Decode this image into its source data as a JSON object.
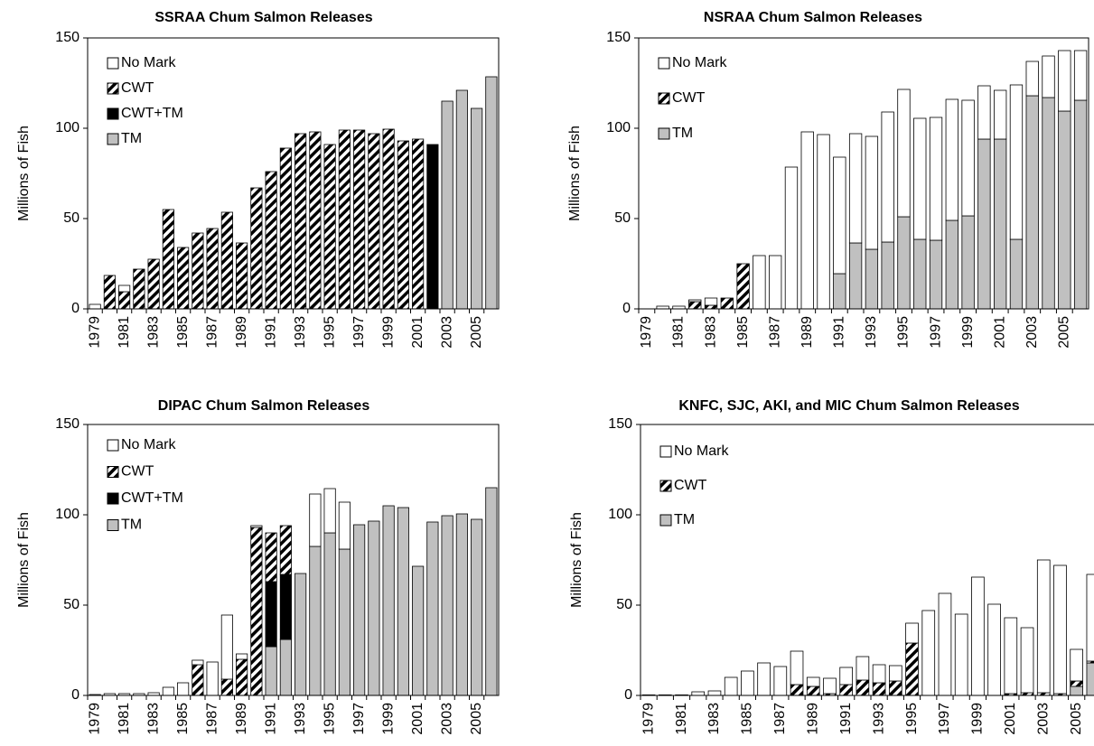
{
  "chart_data": [
    {
      "type": "stacked-bar",
      "title": "SSRAA Chum Salmon Releases",
      "y_label": "Millions of Fish",
      "categories": [
        "1979",
        null,
        "1981",
        null,
        "1983",
        null,
        "1985",
        null,
        "1987",
        null,
        "1989",
        null,
        "1991",
        null,
        "1993",
        null,
        "1995",
        null,
        "1997",
        null,
        "1999",
        null,
        "2001",
        null,
        "2003",
        null,
        "2005",
        null
      ],
      "ylim": [
        0,
        150
      ],
      "yticks": [
        0,
        50,
        100,
        150
      ],
      "series": [
        {
          "name": "No Mark",
          "color": "#ffffff",
          "values": [
            2.5,
            0,
            3.5,
            0,
            0,
            0,
            0,
            0,
            0,
            0,
            0,
            0,
            0,
            0,
            0,
            0,
            0,
            0,
            0,
            0,
            0,
            0,
            0,
            0,
            0,
            0,
            0,
            0
          ]
        },
        {
          "name": "CWT",
          "color": "#000000",
          "hatch": true,
          "values": [
            0,
            18.5,
            9.5,
            22,
            27.5,
            55,
            34,
            42,
            44.5,
            53.5,
            36.5,
            67,
            76,
            89,
            97,
            98,
            91,
            99,
            99,
            97,
            99.5,
            93,
            94,
            0,
            0,
            0,
            0,
            0
          ]
        },
        {
          "name": "CWT+TM",
          "color": "#000000",
          "values": [
            0,
            0,
            0,
            0,
            0,
            0,
            0,
            0,
            0,
            0,
            0,
            0,
            0,
            0,
            0,
            0,
            0,
            0,
            0,
            0,
            0,
            0,
            0,
            91,
            0,
            0,
            0,
            0
          ]
        },
        {
          "name": "TM",
          "color": "#c0c0c0",
          "values": [
            0,
            0,
            0,
            0,
            0,
            0,
            0,
            0,
            0,
            0,
            0,
            0,
            0,
            0,
            0,
            0,
            0,
            0,
            0,
            0,
            0,
            0,
            0,
            0,
            115,
            121,
            111,
            128.5
          ]
        }
      ]
    },
    {
      "type": "stacked-bar",
      "title": "NSRAA Chum Salmon Releases",
      "y_label": "Millions of Fish",
      "categories": [
        "1979",
        null,
        "1981",
        null,
        "1983",
        null,
        "1985",
        null,
        "1987",
        null,
        "1989",
        null,
        "1991",
        null,
        "1993",
        null,
        "1995",
        null,
        "1997",
        null,
        "1999",
        null,
        "2001",
        null,
        "2003",
        null,
        "2005",
        null
      ],
      "ylim": [
        0,
        150
      ],
      "yticks": [
        0,
        50,
        100,
        150
      ],
      "series": [
        {
          "name": "No Mark",
          "color": "#ffffff",
          "values": [
            0,
            1.5,
            1.5,
            1,
            4,
            0,
            0,
            29.5,
            29.5,
            78.5,
            98,
            96.5,
            64.5,
            60.5,
            62.5,
            72,
            70.5,
            67,
            68,
            67,
            64,
            29.5,
            27,
            85.5,
            19,
            23,
            33.5,
            27.5
          ]
        },
        {
          "name": "CWT",
          "color": "#000000",
          "hatch": true,
          "values": [
            0,
            0,
            0,
            4,
            2,
            6,
            25,
            0,
            0,
            0,
            0,
            0,
            0,
            0,
            0,
            0,
            0,
            0,
            0,
            0,
            0,
            0,
            0,
            0,
            0,
            0,
            0,
            0
          ]
        },
        {
          "name": "TM",
          "color": "#c0c0c0",
          "values": [
            0,
            0,
            0,
            0,
            0,
            0,
            0,
            0,
            0,
            0,
            0,
            0,
            19.5,
            36.5,
            33,
            37,
            51,
            38.5,
            38,
            49,
            51.5,
            94,
            94,
            38.5,
            118,
            117,
            109.5,
            115.5
          ]
        }
      ]
    },
    {
      "type": "stacked-bar",
      "title": "DIPAC Chum Salmon Releases",
      "y_label": "Millions of Fish",
      "categories": [
        "1979",
        null,
        "1981",
        null,
        "1983",
        null,
        "1985",
        null,
        "1987",
        null,
        "1989",
        null,
        "1991",
        null,
        "1993",
        null,
        "1995",
        null,
        "1997",
        null,
        "1999",
        null,
        "2001",
        null,
        "2003",
        null,
        "2005",
        null
      ],
      "ylim": [
        0,
        150
      ],
      "yticks": [
        0,
        50,
        100,
        150
      ],
      "series": [
        {
          "name": "No Mark",
          "color": "#ffffff",
          "values": [
            0.5,
            1,
            1,
            1,
            1.5,
            4.5,
            7,
            2.5,
            18.5,
            35.5,
            3,
            1,
            0,
            0,
            0,
            29,
            24.5,
            26,
            0,
            0,
            0,
            0,
            0,
            0,
            0,
            0,
            0,
            0
          ]
        },
        {
          "name": "CWT",
          "color": "#000000",
          "hatch": true,
          "values": [
            0,
            0,
            0,
            0,
            0,
            0,
            0,
            17,
            0,
            9,
            20,
            93,
            27,
            27,
            0,
            0,
            0,
            0,
            0,
            0,
            0,
            0,
            0,
            0,
            0,
            0,
            0,
            0
          ]
        },
        {
          "name": "CWT+TM",
          "color": "#000000",
          "values": [
            0,
            0,
            0,
            0,
            0,
            0,
            0,
            0,
            0,
            0,
            0,
            0,
            36,
            36,
            0,
            0,
            0,
            0,
            0,
            0,
            0,
            0,
            0,
            0,
            0,
            0,
            0,
            0
          ]
        },
        {
          "name": "TM",
          "color": "#c0c0c0",
          "values": [
            0,
            0,
            0,
            0,
            0,
            0,
            0,
            0,
            0,
            0,
            0,
            0,
            27,
            31,
            67.5,
            82.5,
            90,
            81,
            94.5,
            96.5,
            105,
            104,
            71.5,
            96,
            99.5,
            100.5,
            97.5,
            115
          ]
        }
      ]
    },
    {
      "type": "stacked-bar",
      "title": "KNFC, SJC, AKI, and MIC Chum Salmon Releases",
      "y_label": "Millions of Fish",
      "categories": [
        "1979",
        null,
        "1981",
        null,
        "1983",
        null,
        "1985",
        null,
        "1987",
        null,
        "1989",
        null,
        "1991",
        null,
        "1993",
        null,
        "1995",
        null,
        "1997",
        null,
        "1999",
        null,
        "2001",
        null,
        "2003",
        null,
        "2005",
        null
      ],
      "ylim": [
        0,
        150
      ],
      "yticks": [
        0,
        50,
        100,
        150
      ],
      "series": [
        {
          "name": "No Mark",
          "color": "#ffffff",
          "values": [
            0.3,
            0.3,
            0.3,
            2,
            2.5,
            10,
            13.5,
            18,
            16,
            18.5,
            5,
            8.5,
            9.5,
            13,
            10,
            8.5,
            11,
            47,
            56.5,
            45,
            65.5,
            50.5,
            42,
            36,
            73.5,
            71,
            17.5,
            48
          ]
        },
        {
          "name": "CWT",
          "color": "#000000",
          "hatch": true,
          "values": [
            0,
            0,
            0,
            0,
            0,
            0,
            0,
            0,
            0,
            6,
            5,
            1,
            6,
            8.5,
            7,
            8,
            29,
            0,
            0,
            0,
            0,
            0,
            1,
            1.5,
            1.5,
            1,
            3,
            1
          ]
        },
        {
          "name": "TM",
          "color": "#c0c0c0",
          "values": [
            0,
            0,
            0,
            0,
            0,
            0,
            0,
            0,
            0,
            0,
            0,
            0,
            0,
            0,
            0,
            0,
            0,
            0,
            0,
            0,
            0,
            0,
            0,
            0,
            0,
            0,
            5,
            18
          ]
        }
      ]
    }
  ]
}
